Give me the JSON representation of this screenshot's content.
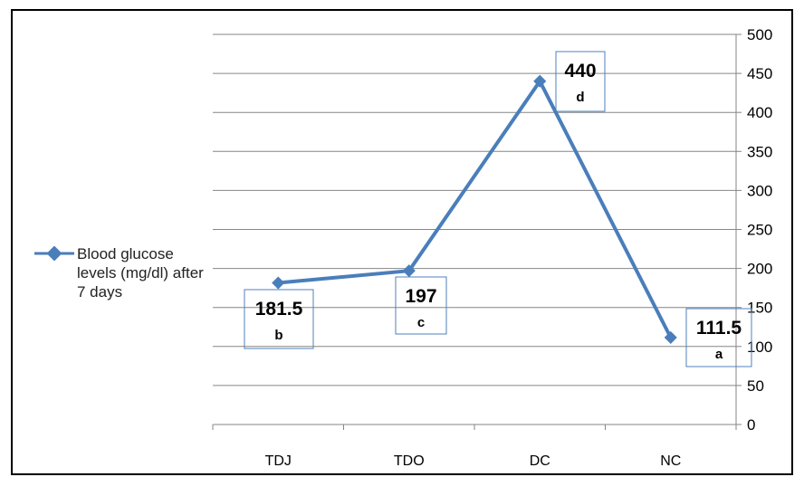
{
  "chart_data": {
    "type": "line",
    "categories": [
      "TDJ",
      "TDO",
      "DC",
      "NC"
    ],
    "series": [
      {
        "name": "Blood glucose levels (mg/dl) after 7 days",
        "values": [
          181.5,
          197,
          440,
          111.5
        ],
        "data_labels": [
          "181.5",
          "197",
          "440",
          "111.5"
        ],
        "letters": [
          "b",
          "c",
          "d",
          "a"
        ]
      }
    ],
    "yticks": [
      "0",
      "50",
      "100",
      "150",
      "200",
      "250",
      "300",
      "350",
      "400",
      "450",
      "500"
    ],
    "ylim": [
      0,
      500
    ],
    "y_axis_side": "right",
    "grid": true,
    "legend_position": "left",
    "colors": {
      "line": "#4a7ebb",
      "grid": "#868686",
      "label_box": "#4f81bd",
      "text": "#000000"
    }
  }
}
